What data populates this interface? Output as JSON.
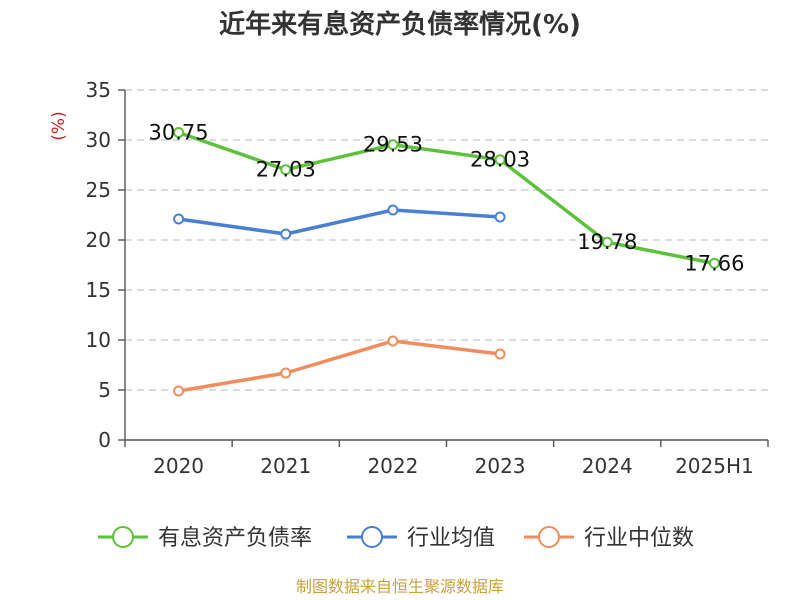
{
  "chart_data": {
    "type": "line",
    "title": "近年来有息资产负债率情况(%)",
    "ylabel": "(%)",
    "categories": [
      "2020",
      "2021",
      "2022",
      "2023",
      "2024",
      "2025H1"
    ],
    "ylim": [
      0,
      35
    ],
    "yticks": [
      "0",
      "5",
      "10",
      "15",
      "20",
      "25",
      "30",
      "35"
    ],
    "grid": true,
    "legend_position": "bottom",
    "series": [
      {
        "name": "有息资产负债率",
        "color": "#5cc23c",
        "values": [
          30.75,
          27.03,
          29.53,
          28.03,
          19.78,
          17.66
        ],
        "labels": [
          "30.75",
          "27.03",
          "29.53",
          "28.03",
          "19.78",
          "17.66"
        ]
      },
      {
        "name": "行业均值",
        "color": "#4a7fd6",
        "values": [
          22.1,
          20.6,
          23.0,
          22.3,
          null,
          null
        ]
      },
      {
        "name": "行业中位数",
        "color": "#f08d5c",
        "values": [
          4.9,
          6.7,
          9.9,
          8.6,
          null,
          null
        ]
      }
    ]
  },
  "source": {
    "text": "制图数据来自恒生聚源数据库",
    "color": "#c9a23a"
  },
  "unit_color": "#cc2222"
}
